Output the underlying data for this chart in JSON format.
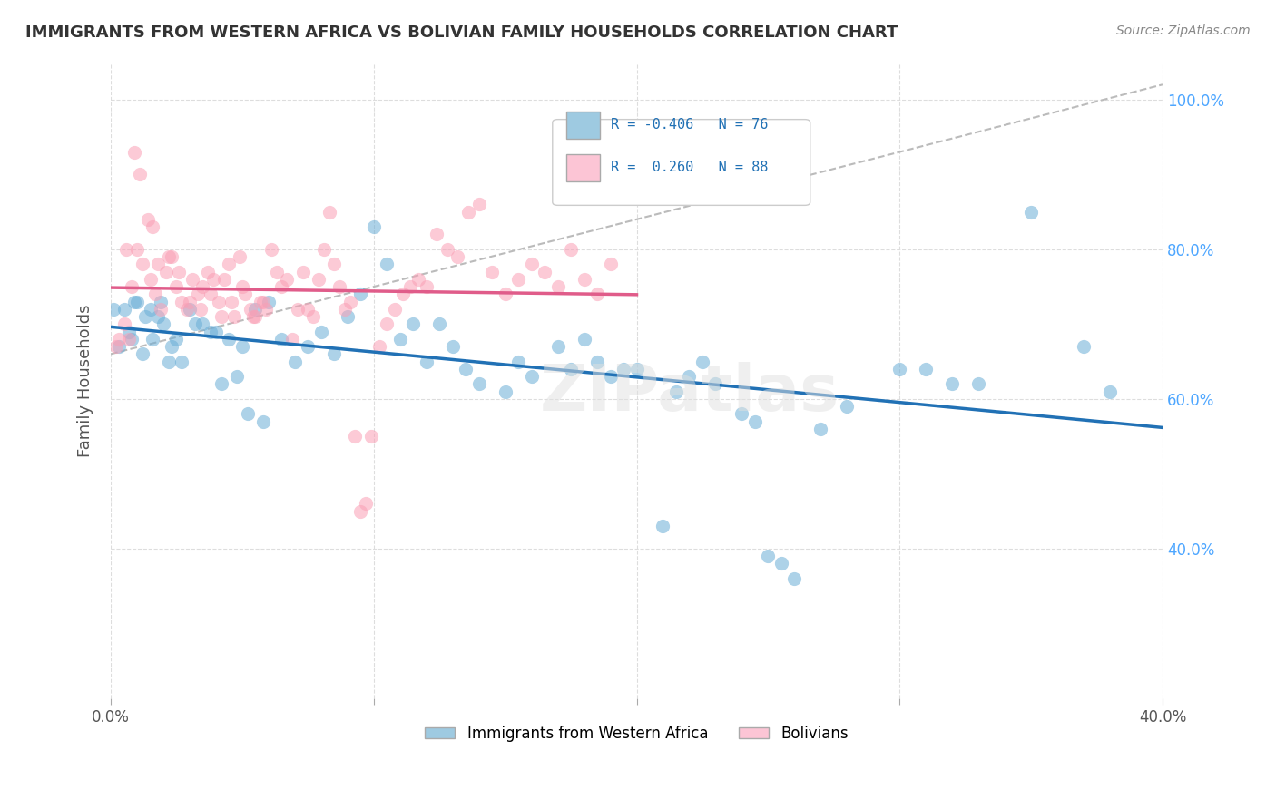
{
  "title": "IMMIGRANTS FROM WESTERN AFRICA VS BOLIVIAN FAMILY HOUSEHOLDS CORRELATION CHART",
  "source": "Source: ZipAtlas.com",
  "ylabel": "Family Households",
  "xlim": [
    0.0,
    0.4
  ],
  "ylim": [
    0.2,
    1.05
  ],
  "legend_r1": "R = -0.406",
  "legend_n1": "N = 76",
  "legend_r2": "R =  0.260",
  "legend_n2": "N = 88",
  "blue_color": "#6baed6",
  "pink_color": "#fa9fb5",
  "blue_fill": "#9ecae1",
  "pink_fill": "#fcc5d5",
  "trend_blue": "#2171b5",
  "trend_pink": "#e05c8a",
  "ref_line_color": "#bbbbbb",
  "watermark": "ZIPatlas",
  "background": "#ffffff",
  "blue_scatter_x": [
    0.02,
    0.025,
    0.015,
    0.01,
    0.005,
    0.008,
    0.012,
    0.018,
    0.022,
    0.03,
    0.035,
    0.04,
    0.045,
    0.05,
    0.055,
    0.06,
    0.065,
    0.07,
    0.075,
    0.08,
    0.085,
    0.09,
    0.095,
    0.1,
    0.105,
    0.11,
    0.115,
    0.12,
    0.125,
    0.13,
    0.135,
    0.14,
    0.15,
    0.155,
    0.16,
    0.17,
    0.175,
    0.18,
    0.185,
    0.19,
    0.195,
    0.2,
    0.21,
    0.215,
    0.22,
    0.225,
    0.23,
    0.24,
    0.245,
    0.25,
    0.255,
    0.26,
    0.27,
    0.28,
    0.3,
    0.31,
    0.32,
    0.33,
    0.35,
    0.37,
    0.38,
    0.001,
    0.003,
    0.007,
    0.009,
    0.013,
    0.016,
    0.019,
    0.023,
    0.027,
    0.032,
    0.038,
    0.042,
    0.048,
    0.052,
    0.058
  ],
  "blue_scatter_y": [
    0.7,
    0.68,
    0.72,
    0.73,
    0.72,
    0.68,
    0.66,
    0.71,
    0.65,
    0.72,
    0.7,
    0.69,
    0.68,
    0.67,
    0.72,
    0.73,
    0.68,
    0.65,
    0.67,
    0.69,
    0.66,
    0.71,
    0.74,
    0.83,
    0.78,
    0.68,
    0.7,
    0.65,
    0.7,
    0.67,
    0.64,
    0.62,
    0.61,
    0.65,
    0.63,
    0.67,
    0.64,
    0.68,
    0.65,
    0.63,
    0.64,
    0.64,
    0.43,
    0.61,
    0.63,
    0.65,
    0.62,
    0.58,
    0.57,
    0.39,
    0.38,
    0.36,
    0.56,
    0.59,
    0.64,
    0.64,
    0.62,
    0.62,
    0.85,
    0.67,
    0.61,
    0.72,
    0.67,
    0.69,
    0.73,
    0.71,
    0.68,
    0.73,
    0.67,
    0.65,
    0.7,
    0.69,
    0.62,
    0.63,
    0.58,
    0.57
  ],
  "pink_scatter_x": [
    0.005,
    0.007,
    0.008,
    0.01,
    0.012,
    0.015,
    0.017,
    0.019,
    0.021,
    0.023,
    0.025,
    0.027,
    0.029,
    0.031,
    0.033,
    0.035,
    0.037,
    0.039,
    0.041,
    0.043,
    0.045,
    0.047,
    0.049,
    0.051,
    0.053,
    0.055,
    0.057,
    0.059,
    0.061,
    0.063,
    0.065,
    0.067,
    0.069,
    0.071,
    0.073,
    0.075,
    0.077,
    0.079,
    0.081,
    0.083,
    0.085,
    0.087,
    0.089,
    0.091,
    0.093,
    0.095,
    0.097,
    0.099,
    0.102,
    0.105,
    0.108,
    0.111,
    0.114,
    0.117,
    0.12,
    0.124,
    0.128,
    0.132,
    0.136,
    0.14,
    0.145,
    0.15,
    0.155,
    0.16,
    0.165,
    0.17,
    0.175,
    0.18,
    0.185,
    0.19,
    0.002,
    0.003,
    0.006,
    0.009,
    0.011,
    0.014,
    0.016,
    0.018,
    0.022,
    0.026,
    0.03,
    0.034,
    0.038,
    0.042,
    0.046,
    0.05,
    0.054,
    0.058
  ],
  "pink_scatter_y": [
    0.7,
    0.68,
    0.75,
    0.8,
    0.78,
    0.76,
    0.74,
    0.72,
    0.77,
    0.79,
    0.75,
    0.73,
    0.72,
    0.76,
    0.74,
    0.75,
    0.77,
    0.76,
    0.73,
    0.76,
    0.78,
    0.71,
    0.79,
    0.74,
    0.72,
    0.71,
    0.73,
    0.72,
    0.8,
    0.77,
    0.75,
    0.76,
    0.68,
    0.72,
    0.77,
    0.72,
    0.71,
    0.76,
    0.8,
    0.85,
    0.78,
    0.75,
    0.72,
    0.73,
    0.55,
    0.45,
    0.46,
    0.55,
    0.67,
    0.7,
    0.72,
    0.74,
    0.75,
    0.76,
    0.75,
    0.82,
    0.8,
    0.79,
    0.85,
    0.86,
    0.77,
    0.74,
    0.76,
    0.78,
    0.77,
    0.75,
    0.8,
    0.76,
    0.74,
    0.78,
    0.67,
    0.68,
    0.8,
    0.93,
    0.9,
    0.84,
    0.83,
    0.78,
    0.79,
    0.77,
    0.73,
    0.72,
    0.74,
    0.71,
    0.73,
    0.75,
    0.71,
    0.73
  ]
}
